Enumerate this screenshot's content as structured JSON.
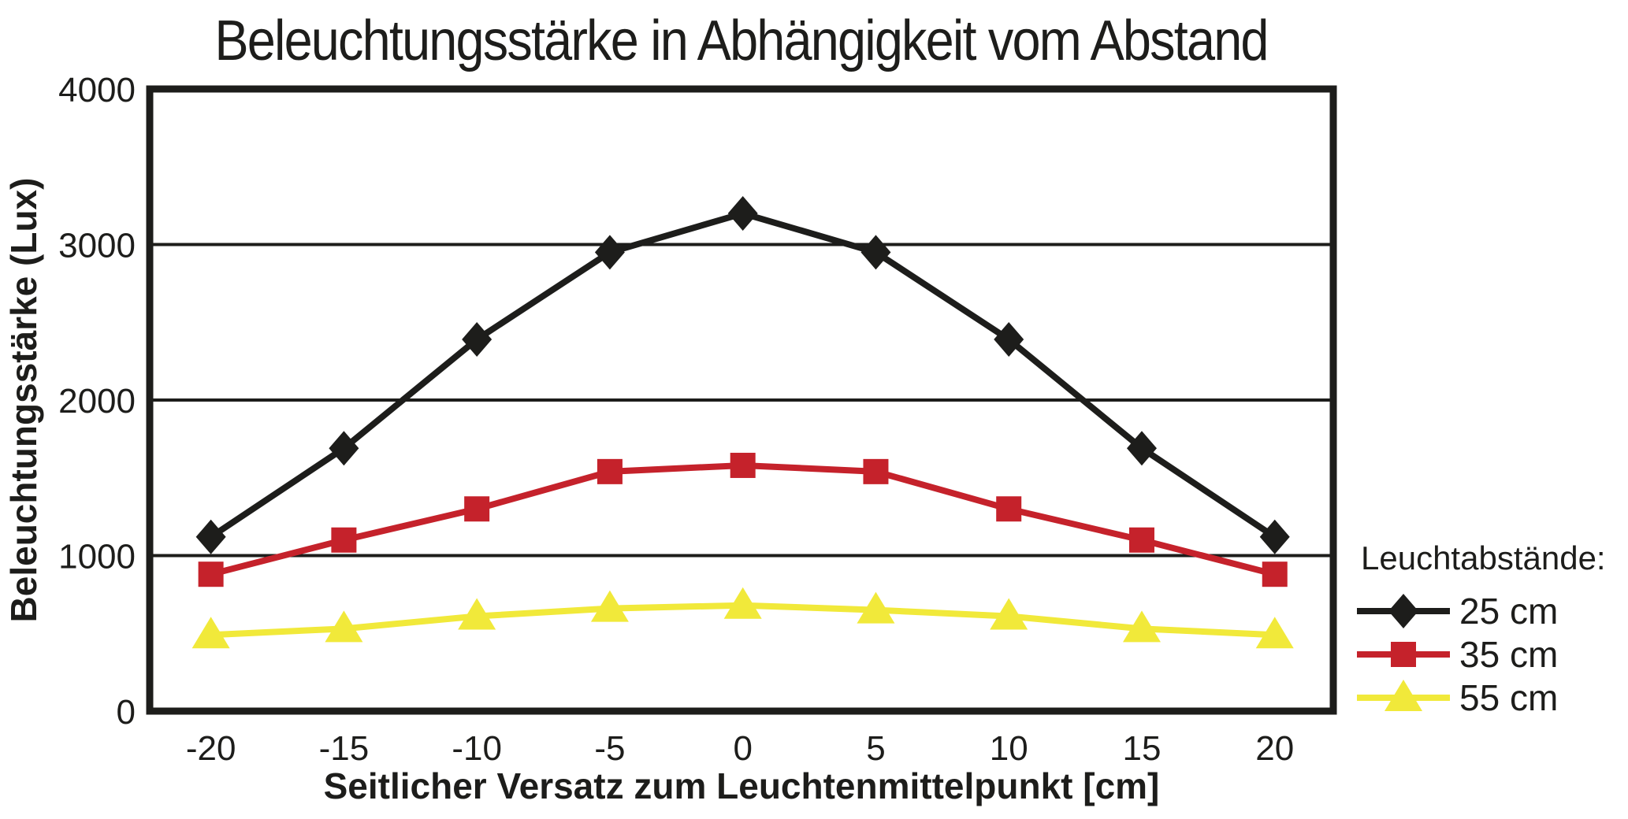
{
  "title": "Beleuchtungsstärke in Abhängigkeit vom Abstand",
  "chart_data": {
    "type": "line",
    "title": "Beleuchtungsstärke in Abhängigkeit vom Abstand",
    "xlabel": "Seitlicher Versatz zum Leuchtenmittelpunkt [cm]",
    "ylabel": "Beleuchtungsstärke (Lux)",
    "legend_title": "Leuchtabstände:",
    "legend_position": "right",
    "grid": "horizontal",
    "x": [
      -20,
      -15,
      -10,
      -5,
      0,
      5,
      10,
      15,
      20
    ],
    "xticks": [
      -20,
      -15,
      -10,
      -5,
      0,
      5,
      10,
      15,
      20
    ],
    "yticks": [
      0,
      1000,
      2000,
      3000,
      4000
    ],
    "xlim": [
      -22.3,
      22.2
    ],
    "ylim": [
      0,
      4000
    ],
    "series": [
      {
        "name": "25 cm",
        "marker": "diamond",
        "color": "#1d1d1b",
        "values": [
          1120,
          1690,
          2390,
          2950,
          3200,
          2950,
          2390,
          1690,
          1120
        ]
      },
      {
        "name": "35 cm",
        "marker": "square",
        "color": "#c5222b",
        "values": [
          880,
          1100,
          1300,
          1540,
          1580,
          1540,
          1300,
          1100,
          880
        ]
      },
      {
        "name": "55 cm",
        "marker": "triangle",
        "color": "#f1e93a",
        "values": [
          490,
          530,
          610,
          660,
          680,
          650,
          610,
          530,
          490
        ]
      }
    ]
  },
  "colors": {
    "background": "#ffffff",
    "axis": "#1d1d1b",
    "grid": "#1d1d1b"
  }
}
